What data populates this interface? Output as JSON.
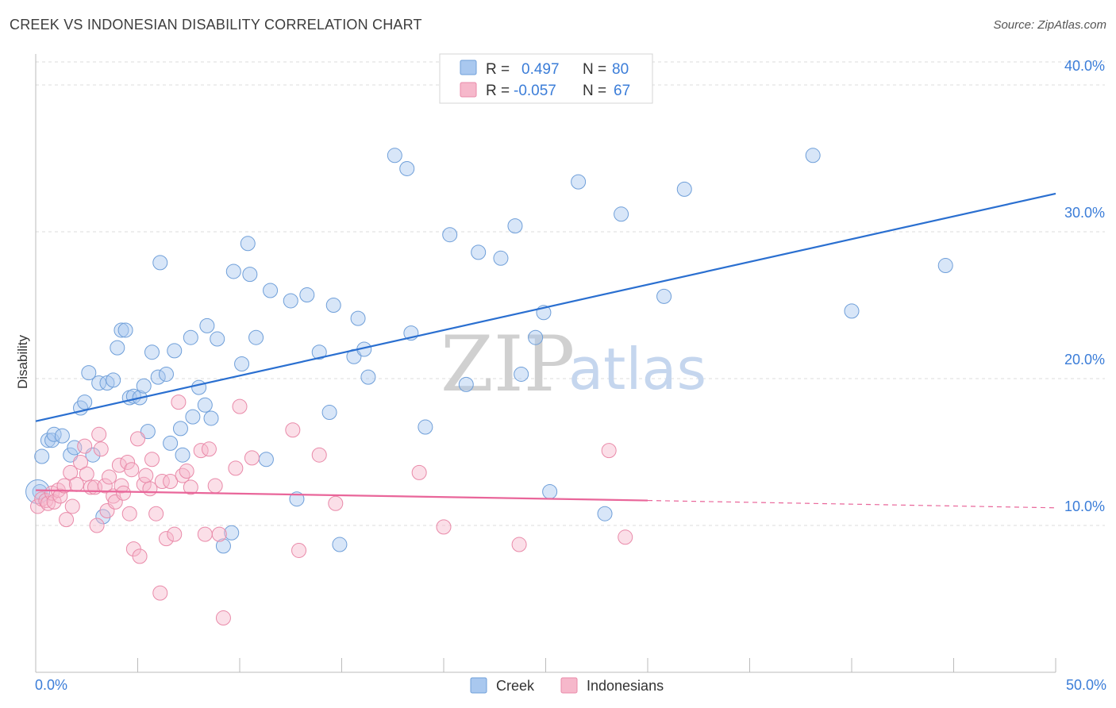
{
  "header": {
    "title": "CREEK VS INDONESIAN DISABILITY CORRELATION CHART",
    "source": "Source: ZipAtlas.com"
  },
  "colors": {
    "creek_fill": "#a9c8ef",
    "creek_stroke": "#6f9fd9",
    "creek_line": "#2a6fd0",
    "indo_fill": "#f6b8cb",
    "indo_stroke": "#e98aa9",
    "indo_line": "#e9669a",
    "tick_text": "#3b7dd8",
    "grid": "#dddddd"
  },
  "legend_top": {
    "rows": [
      {
        "r_label": "R =",
        "r_value": "0.497",
        "n_label": "N =",
        "n_value": "80"
      },
      {
        "r_label": "R =",
        "r_value": "-0.057",
        "n_label": "N =",
        "n_value": "67"
      }
    ]
  },
  "legend_bottom": {
    "items": [
      {
        "label": "Creek"
      },
      {
        "label": "Indonesians"
      }
    ]
  },
  "watermark": {
    "zip": "ZIP",
    "atlas": "atlas"
  },
  "chart_data": {
    "type": "scatter",
    "xlabel": "",
    "ylabel": "Disability",
    "xlim": [
      0,
      50
    ],
    "ylim": [
      0,
      42
    ],
    "x_tick_labels": [
      "0.0%",
      "50.0%"
    ],
    "y_ticks": [
      10,
      20,
      30,
      40
    ],
    "y_tick_labels": [
      "10.0%",
      "20.0%",
      "30.0%",
      "40.0%"
    ],
    "grid": true,
    "legend_position": "top-center",
    "series": [
      {
        "name": "Creek",
        "trend": {
          "x": [
            0,
            50
          ],
          "y": [
            17.1,
            32.6
          ]
        },
        "points": [
          [
            0.3,
            14.7
          ],
          [
            0.6,
            15.8
          ],
          [
            0.8,
            15.8
          ],
          [
            0.9,
            16.2
          ],
          [
            1.3,
            16.1
          ],
          [
            1.7,
            14.8
          ],
          [
            1.9,
            15.3
          ],
          [
            2.2,
            18.0
          ],
          [
            2.4,
            18.4
          ],
          [
            2.6,
            20.4
          ],
          [
            2.8,
            14.8
          ],
          [
            3.1,
            19.7
          ],
          [
            3.3,
            10.6
          ],
          [
            3.5,
            19.7
          ],
          [
            3.8,
            19.9
          ],
          [
            4.0,
            22.1
          ],
          [
            4.2,
            23.3
          ],
          [
            4.4,
            23.3
          ],
          [
            4.6,
            18.7
          ],
          [
            4.8,
            18.8
          ],
          [
            5.1,
            18.7
          ],
          [
            5.3,
            19.5
          ],
          [
            5.5,
            16.4
          ],
          [
            5.7,
            21.8
          ],
          [
            6.0,
            20.1
          ],
          [
            6.1,
            27.9
          ],
          [
            6.4,
            20.3
          ],
          [
            6.6,
            15.6
          ],
          [
            6.8,
            21.9
          ],
          [
            7.1,
            16.6
          ],
          [
            7.2,
            14.8
          ],
          [
            7.6,
            22.8
          ],
          [
            7.7,
            17.4
          ],
          [
            8.0,
            19.4
          ],
          [
            8.3,
            18.2
          ],
          [
            8.4,
            23.6
          ],
          [
            8.6,
            17.3
          ],
          [
            8.9,
            22.7
          ],
          [
            9.2,
            8.6
          ],
          [
            9.6,
            9.5
          ],
          [
            9.7,
            27.3
          ],
          [
            10.1,
            21.0
          ],
          [
            10.4,
            29.2
          ],
          [
            10.5,
            27.1
          ],
          [
            10.8,
            22.8
          ],
          [
            11.3,
            14.5
          ],
          [
            11.5,
            26.0
          ],
          [
            12.5,
            25.3
          ],
          [
            12.8,
            11.8
          ],
          [
            13.3,
            25.7
          ],
          [
            13.9,
            21.8
          ],
          [
            14.4,
            17.7
          ],
          [
            14.6,
            25.0
          ],
          [
            14.9,
            8.7
          ],
          [
            15.6,
            21.5
          ],
          [
            15.8,
            24.1
          ],
          [
            16.1,
            22.0
          ],
          [
            16.3,
            20.1
          ],
          [
            17.6,
            35.2
          ],
          [
            18.2,
            34.3
          ],
          [
            18.4,
            23.1
          ],
          [
            19.1,
            16.7
          ],
          [
            20.3,
            29.8
          ],
          [
            21.1,
            19.6
          ],
          [
            21.7,
            28.6
          ],
          [
            22.8,
            28.2
          ],
          [
            23.5,
            30.4
          ],
          [
            23.8,
            20.3
          ],
          [
            24.5,
            22.8
          ],
          [
            24.9,
            24.5
          ],
          [
            25.2,
            12.3
          ],
          [
            26.6,
            33.4
          ],
          [
            27.9,
            10.8
          ],
          [
            28.7,
            31.2
          ],
          [
            30.8,
            25.6
          ],
          [
            31.8,
            32.9
          ],
          [
            38.1,
            35.2
          ],
          [
            40.0,
            24.6
          ],
          [
            44.6,
            27.7
          ],
          [
            0.2,
            12.3
          ]
        ]
      },
      {
        "name": "Indonesians",
        "trend": {
          "x": [
            0,
            30
          ],
          "y": [
            12.4,
            11.7
          ]
        },
        "trend_dashed": {
          "x": [
            30,
            50
          ],
          "y": [
            11.7,
            11.2
          ]
        },
        "points": [
          [
            0.1,
            11.3
          ],
          [
            0.3,
            11.8
          ],
          [
            0.5,
            11.7
          ],
          [
            0.6,
            11.5
          ],
          [
            0.8,
            12.2
          ],
          [
            0.9,
            11.6
          ],
          [
            1.1,
            12.4
          ],
          [
            1.2,
            12.0
          ],
          [
            1.4,
            12.7
          ],
          [
            1.5,
            10.4
          ],
          [
            1.7,
            13.6
          ],
          [
            1.8,
            11.3
          ],
          [
            2.0,
            12.8
          ],
          [
            2.2,
            14.3
          ],
          [
            2.4,
            15.4
          ],
          [
            2.5,
            13.5
          ],
          [
            2.7,
            12.6
          ],
          [
            2.9,
            12.6
          ],
          [
            3.0,
            10.0
          ],
          [
            3.1,
            16.2
          ],
          [
            3.2,
            15.2
          ],
          [
            3.4,
            12.7
          ],
          [
            3.5,
            11.0
          ],
          [
            3.6,
            13.3
          ],
          [
            3.8,
            12.0
          ],
          [
            3.9,
            11.6
          ],
          [
            4.1,
            14.1
          ],
          [
            4.2,
            12.7
          ],
          [
            4.3,
            12.2
          ],
          [
            4.5,
            14.3
          ],
          [
            4.6,
            10.8
          ],
          [
            4.7,
            13.8
          ],
          [
            4.8,
            8.4
          ],
          [
            5.0,
            15.9
          ],
          [
            5.1,
            7.9
          ],
          [
            5.3,
            12.8
          ],
          [
            5.4,
            13.4
          ],
          [
            5.6,
            12.5
          ],
          [
            5.7,
            14.5
          ],
          [
            5.9,
            10.8
          ],
          [
            6.1,
            5.4
          ],
          [
            6.2,
            13.0
          ],
          [
            6.4,
            9.1
          ],
          [
            6.6,
            13.0
          ],
          [
            6.8,
            9.4
          ],
          [
            7.0,
            18.4
          ],
          [
            7.2,
            13.4
          ],
          [
            7.4,
            13.7
          ],
          [
            7.6,
            12.6
          ],
          [
            8.1,
            15.1
          ],
          [
            8.3,
            9.4
          ],
          [
            8.5,
            15.2
          ],
          [
            8.8,
            12.7
          ],
          [
            9.0,
            9.4
          ],
          [
            9.2,
            3.7
          ],
          [
            9.8,
            13.9
          ],
          [
            10.0,
            18.1
          ],
          [
            10.6,
            14.6
          ],
          [
            12.6,
            16.5
          ],
          [
            12.9,
            8.3
          ],
          [
            13.9,
            14.8
          ],
          [
            14.7,
            11.5
          ],
          [
            18.8,
            13.6
          ],
          [
            20.0,
            9.9
          ],
          [
            23.7,
            8.7
          ],
          [
            28.9,
            9.2
          ],
          [
            28.1,
            15.1
          ]
        ]
      }
    ]
  }
}
